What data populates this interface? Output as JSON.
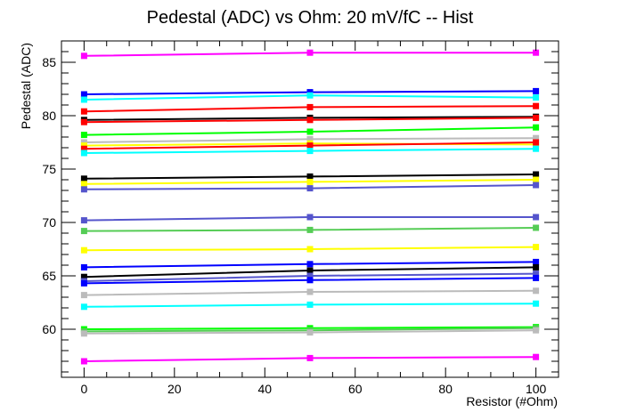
{
  "chart_data": {
    "type": "line",
    "title": "Pedestal (ADC) vs Ohm: 20 mV/fC -- Hist",
    "xlabel": "Resistor (#Ohm)",
    "ylabel": "Pedestal (ADC)",
    "xlim": [
      -5,
      105
    ],
    "ylim": [
      55.5,
      87.0
    ],
    "x_ticks": [
      0,
      20,
      40,
      60,
      80,
      100
    ],
    "y_ticks": [
      60,
      65,
      70,
      75,
      80,
      85
    ],
    "grid": false,
    "legend": "none",
    "x": [
      0,
      50,
      100
    ],
    "series": [
      {
        "color": "#ff00ff",
        "values": [
          85.6,
          85.9,
          85.9
        ]
      },
      {
        "color": "#0000ff",
        "values": [
          82.0,
          82.2,
          82.3
        ]
      },
      {
        "color": "#00ffff",
        "values": [
          81.5,
          81.9,
          81.7
        ]
      },
      {
        "color": "#ff0000",
        "values": [
          80.4,
          80.8,
          80.9
        ]
      },
      {
        "color": "#000000",
        "values": [
          79.6,
          79.8,
          79.9
        ]
      },
      {
        "color": "#ff0000",
        "values": [
          79.4,
          79.6,
          79.8
        ]
      },
      {
        "color": "#00ff00",
        "values": [
          78.2,
          78.5,
          78.9
        ]
      },
      {
        "color": "#bbbbbb",
        "values": [
          77.5,
          77.8,
          77.9
        ]
      },
      {
        "color": "#ffff00",
        "values": [
          77.2,
          77.4,
          77.3
        ]
      },
      {
        "color": "#ff0000",
        "values": [
          76.9,
          77.2,
          77.5
        ]
      },
      {
        "color": "#00ffff",
        "values": [
          76.5,
          76.7,
          76.9
        ]
      },
      {
        "color": "#000000",
        "values": [
          74.1,
          74.3,
          74.5
        ]
      },
      {
        "color": "#ffff00",
        "values": [
          73.6,
          73.8,
          74.0
        ]
      },
      {
        "color": "#5555cc",
        "values": [
          73.1,
          73.2,
          73.5
        ]
      },
      {
        "color": "#5555cc",
        "values": [
          70.2,
          70.5,
          70.5
        ]
      },
      {
        "color": "#55cc55",
        "values": [
          69.2,
          69.3,
          69.5
        ]
      },
      {
        "color": "#ffff00",
        "values": [
          67.4,
          67.5,
          67.7
        ]
      },
      {
        "color": "#0000ff",
        "values": [
          65.8,
          66.1,
          66.3
        ]
      },
      {
        "color": "#000000",
        "values": [
          64.9,
          65.5,
          65.8
        ]
      },
      {
        "color": "#5555cc",
        "values": [
          64.5,
          65.0,
          65.2
        ]
      },
      {
        "color": "#0000ff",
        "values": [
          64.3,
          64.6,
          64.8
        ]
      },
      {
        "color": "#bbbbbb",
        "values": [
          63.2,
          63.5,
          63.6
        ]
      },
      {
        "color": "#00ffff",
        "values": [
          62.1,
          62.3,
          62.4
        ]
      },
      {
        "color": "#00ff00",
        "values": [
          60.0,
          60.1,
          60.2
        ]
      },
      {
        "color": "#55cc55",
        "values": [
          59.8,
          59.9,
          60.1
        ]
      },
      {
        "color": "#bbbbbb",
        "values": [
          59.6,
          59.7,
          59.9
        ]
      },
      {
        "color": "#ff00ff",
        "values": [
          57.0,
          57.3,
          57.4
        ]
      }
    ]
  }
}
